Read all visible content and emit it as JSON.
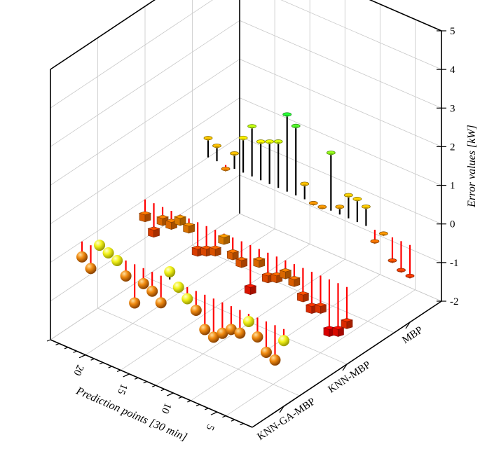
{
  "chart_data": {
    "type": "3d-bar-stem",
    "title": "",
    "z_axis": {
      "label": "Error values [kW]",
      "range": [
        -2,
        5
      ],
      "ticks": [
        "-2",
        "-1",
        "0",
        "1",
        "2",
        "3",
        "4",
        "5"
      ]
    },
    "x_axis": {
      "label": "Prediction points [30 min]",
      "ticks": [
        "5",
        "10",
        "15",
        "20"
      ],
      "range": [
        1,
        24
      ]
    },
    "y_axis": {
      "categories": [
        "KNN-GA-MBP",
        "KNN-MBP",
        "MBP"
      ]
    },
    "series": [
      {
        "name": "MBP",
        "marker": "flat",
        "x": [
          1,
          2,
          3,
          4,
          5,
          6,
          7,
          8,
          9,
          10,
          11,
          12,
          13,
          14,
          15,
          16,
          17,
          18,
          19,
          20,
          21,
          22,
          23,
          24
        ],
        "values": [
          -0.8,
          -0.75,
          -0.6,
          0.0,
          -0.3,
          0.5,
          0.6,
          0.6,
          0.2,
          1.5,
          0.0,
          0.0,
          0.4,
          1.8,
          2.0,
          1.2,
          1.1,
          1.0,
          1.3,
          0.9,
          0.4,
          -0.1,
          0.4,
          0.5
        ]
      },
      {
        "name": "KNN-MBP",
        "marker": "cube",
        "x": [
          1,
          2,
          3,
          4,
          5,
          6,
          7,
          8,
          9,
          10,
          11,
          12,
          13,
          14,
          15,
          16,
          17,
          18,
          19,
          20,
          21,
          22,
          23,
          24
        ],
        "values": [
          -0.9,
          -1.2,
          -1.3,
          -0.8,
          -0.9,
          -0.7,
          -0.4,
          -0.3,
          -0.5,
          -0.6,
          -0.3,
          -1.1,
          -0.5,
          -0.4,
          -0.1,
          -0.5,
          -0.6,
          -0.7,
          -0.2,
          -0.1,
          -0.3,
          -0.3,
          -0.7,
          -0.4
        ]
      },
      {
        "name": "KNN-GA-MBP",
        "marker": "sphere",
        "x": [
          1,
          2,
          3,
          4,
          5,
          6,
          7,
          8,
          9,
          10,
          11,
          12,
          13,
          14,
          15,
          16,
          17,
          18,
          19,
          20,
          21,
          22,
          23,
          24
        ],
        "values": [
          -0.3,
          -0.9,
          -0.8,
          -0.5,
          -0.2,
          -0.6,
          -0.6,
          -0.8,
          -1.0,
          -0.9,
          -0.5,
          -0.3,
          -0.1,
          0.2,
          -0.7,
          -0.5,
          -0.4,
          -1.0,
          -0.4,
          -0.1,
          0.0,
          0.1,
          -0.6,
          -0.4
        ]
      }
    ],
    "colormap": [
      "#0000ff",
      "#00e5ff",
      "#00ff40",
      "#ffff00",
      "#ff8c00",
      "#ff0000"
    ],
    "grid": true
  }
}
